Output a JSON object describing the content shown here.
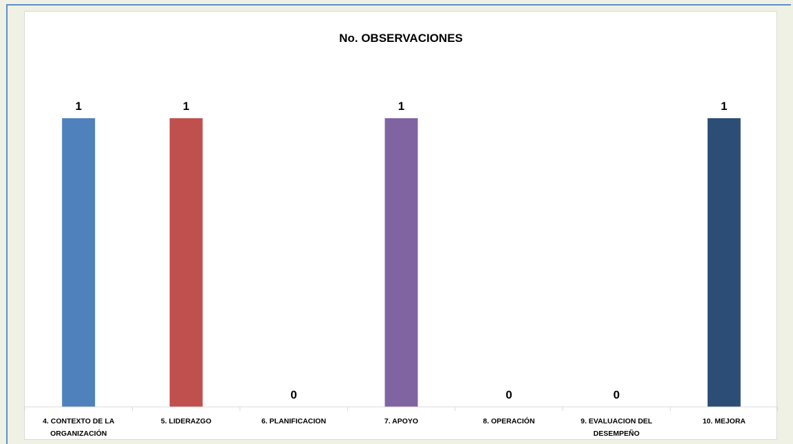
{
  "chart_data": {
    "type": "bar",
    "title": "No. OBSERVACIONES",
    "xlabel": "",
    "ylabel": "",
    "ylim": [
      0,
      1
    ],
    "grid": false,
    "legend": "none",
    "categories": [
      "4. CONTEXTO DE LA ORGANIZACIÓN",
      "5. LIDERAZGO",
      "6. PLANIFICACION",
      "7. APOYO",
      "8. OPERACIÓN",
      "9. EVALUACION DEL DESEMPEÑO",
      "10. MEJORA"
    ],
    "tick_lines": [
      [
        "4. CONTEXTO DE LA",
        "ORGANIZACIÓN"
      ],
      [
        "5. LIDERAZGO"
      ],
      [
        "6. PLANIFICACION"
      ],
      [
        "7. APOYO"
      ],
      [
        "8. OPERACIÓN"
      ],
      [
        "9. EVALUACION DEL",
        "DESEMPEÑO"
      ],
      [
        "10. MEJORA"
      ]
    ],
    "values": [
      1,
      1,
      0,
      1,
      0,
      0,
      1
    ],
    "colors": [
      "#4f81bd",
      "#c0504d",
      "#9bbb59",
      "#8064a2",
      "#4bacc6",
      "#f79646",
      "#2c4d75"
    ],
    "data_labels": [
      "1",
      "1",
      "0",
      "1",
      "0",
      "0",
      "1"
    ]
  }
}
